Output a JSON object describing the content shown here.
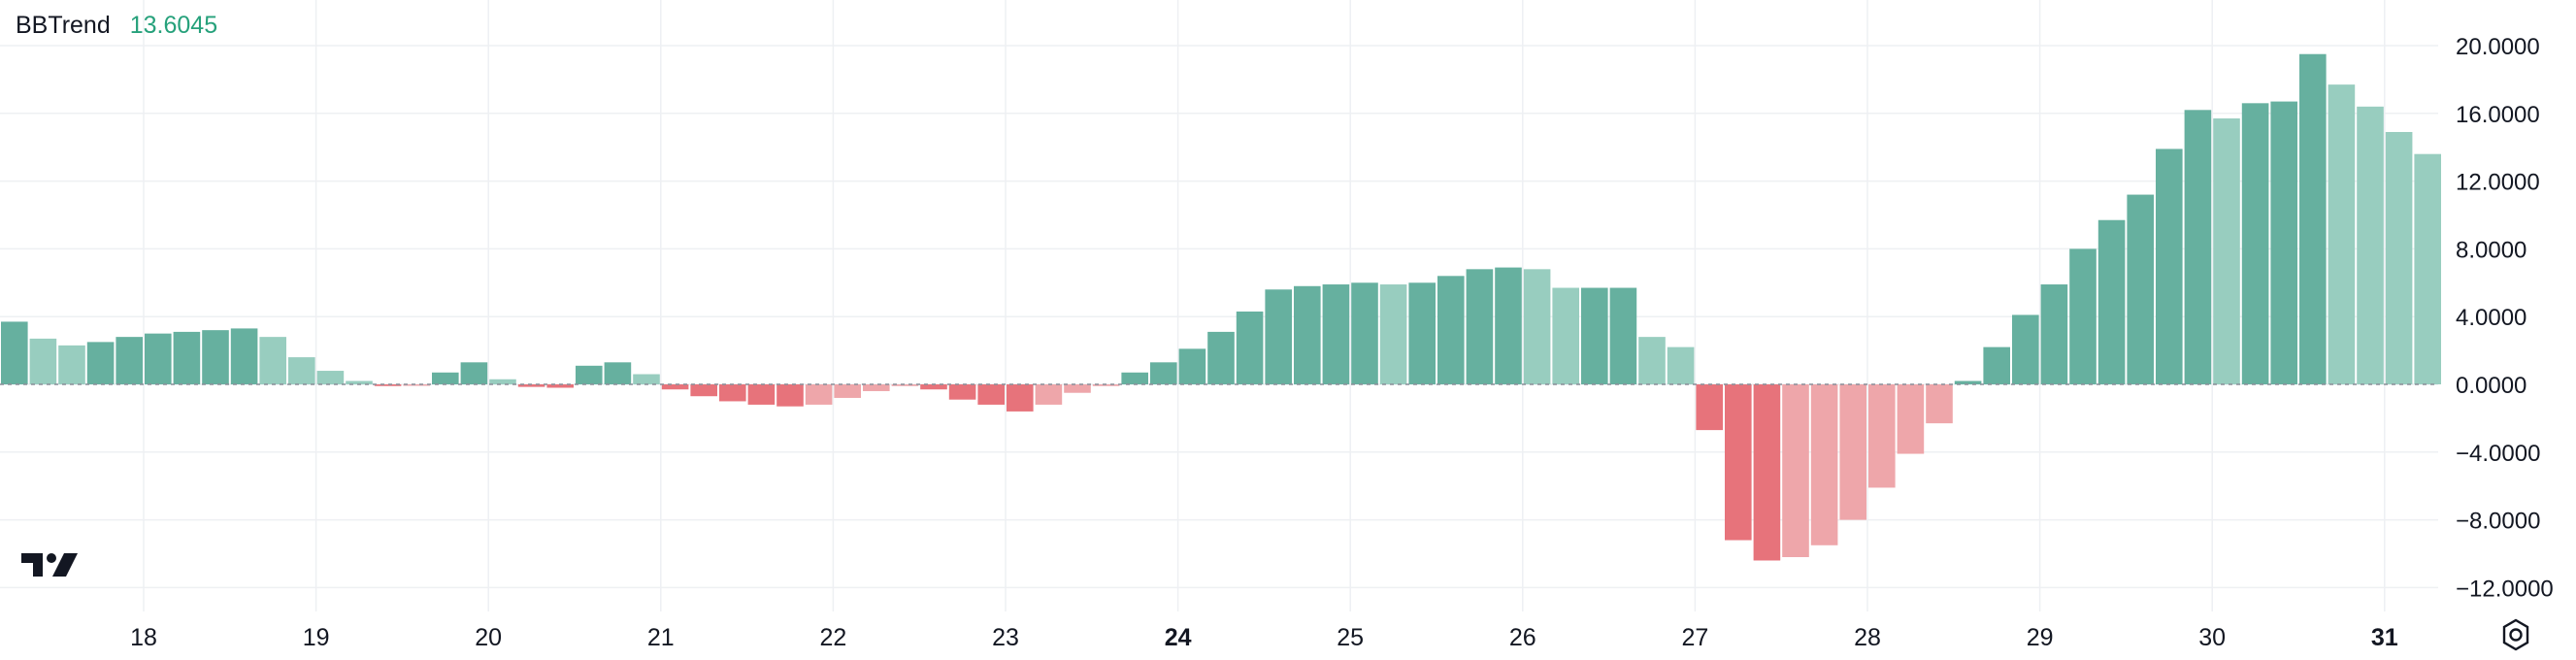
{
  "legend": {
    "name": "BBTrend",
    "value": "13.6045"
  },
  "colors": {
    "up_strong": "#66b09f",
    "up_weak": "#98cdbf",
    "down_strong": "#e7737b",
    "down_weak": "#eea6aa",
    "grid": "#eef0f3",
    "zero_line": "#8a8f99"
  },
  "icons": {
    "logo": "tradingview-logo-icon",
    "settings": "settings-gear-icon"
  },
  "chart_data": {
    "type": "bar",
    "title": "",
    "ylim": [
      -13.5,
      22
    ],
    "y_ticks": [
      20,
      16,
      12,
      8,
      4,
      0,
      -4,
      -8,
      -12
    ],
    "y_tick_labels": [
      "20.0000",
      "16.0000",
      "12.0000",
      "8.0000",
      "4.0000",
      "0.0000",
      "−4.0000",
      "−8.0000",
      "−12.0000"
    ],
    "x_ticks": [
      {
        "label": "18",
        "index": 4.5,
        "bold": false
      },
      {
        "label": "19",
        "index": 10.5,
        "bold": false
      },
      {
        "label": "20",
        "index": 16.5,
        "bold": false
      },
      {
        "label": "21",
        "index": 22.5,
        "bold": false
      },
      {
        "label": "22",
        "index": 28.5,
        "bold": false
      },
      {
        "label": "23",
        "index": 34.5,
        "bold": false
      },
      {
        "label": "24",
        "index": 40.5,
        "bold": true
      },
      {
        "label": "25",
        "index": 46.5,
        "bold": false
      },
      {
        "label": "26",
        "index": 52.5,
        "bold": false
      },
      {
        "label": "27",
        "index": 58.5,
        "bold": false
      },
      {
        "label": "28",
        "index": 64.5,
        "bold": false
      },
      {
        "label": "29",
        "index": 70.5,
        "bold": false
      },
      {
        "label": "30",
        "index": 76.5,
        "bold": false
      },
      {
        "label": "31",
        "index": 82.5,
        "bold": true
      }
    ],
    "grid": true,
    "values": [
      3.7,
      2.7,
      2.3,
      2.5,
      2.8,
      3.0,
      3.1,
      3.2,
      3.3,
      2.8,
      1.6,
      0.8,
      0.2,
      -0.1,
      -0.05,
      0.7,
      1.3,
      0.3,
      -0.15,
      -0.2,
      1.1,
      1.3,
      0.6,
      -0.3,
      -0.7,
      -1.0,
      -1.2,
      -1.3,
      -1.2,
      -0.8,
      -0.4,
      -0.1,
      -0.3,
      -0.9,
      -1.2,
      -1.6,
      -1.2,
      -0.5,
      -0.1,
      0.7,
      1.3,
      2.1,
      3.1,
      4.3,
      5.6,
      5.8,
      5.9,
      6.0,
      5.9,
      6.0,
      6.4,
      6.8,
      6.9,
      6.8,
      5.7,
      5.7,
      5.7,
      2.8,
      2.2,
      -2.7,
      -9.2,
      -10.4,
      -10.2,
      -9.5,
      -8.0,
      -6.1,
      -4.1,
      -2.3,
      0.2,
      2.2,
      4.1,
      5.9,
      8.0,
      9.7,
      11.2,
      13.9,
      16.2,
      15.7,
      16.6,
      16.7,
      19.5,
      17.7,
      16.4,
      14.9,
      13.6
    ]
  }
}
